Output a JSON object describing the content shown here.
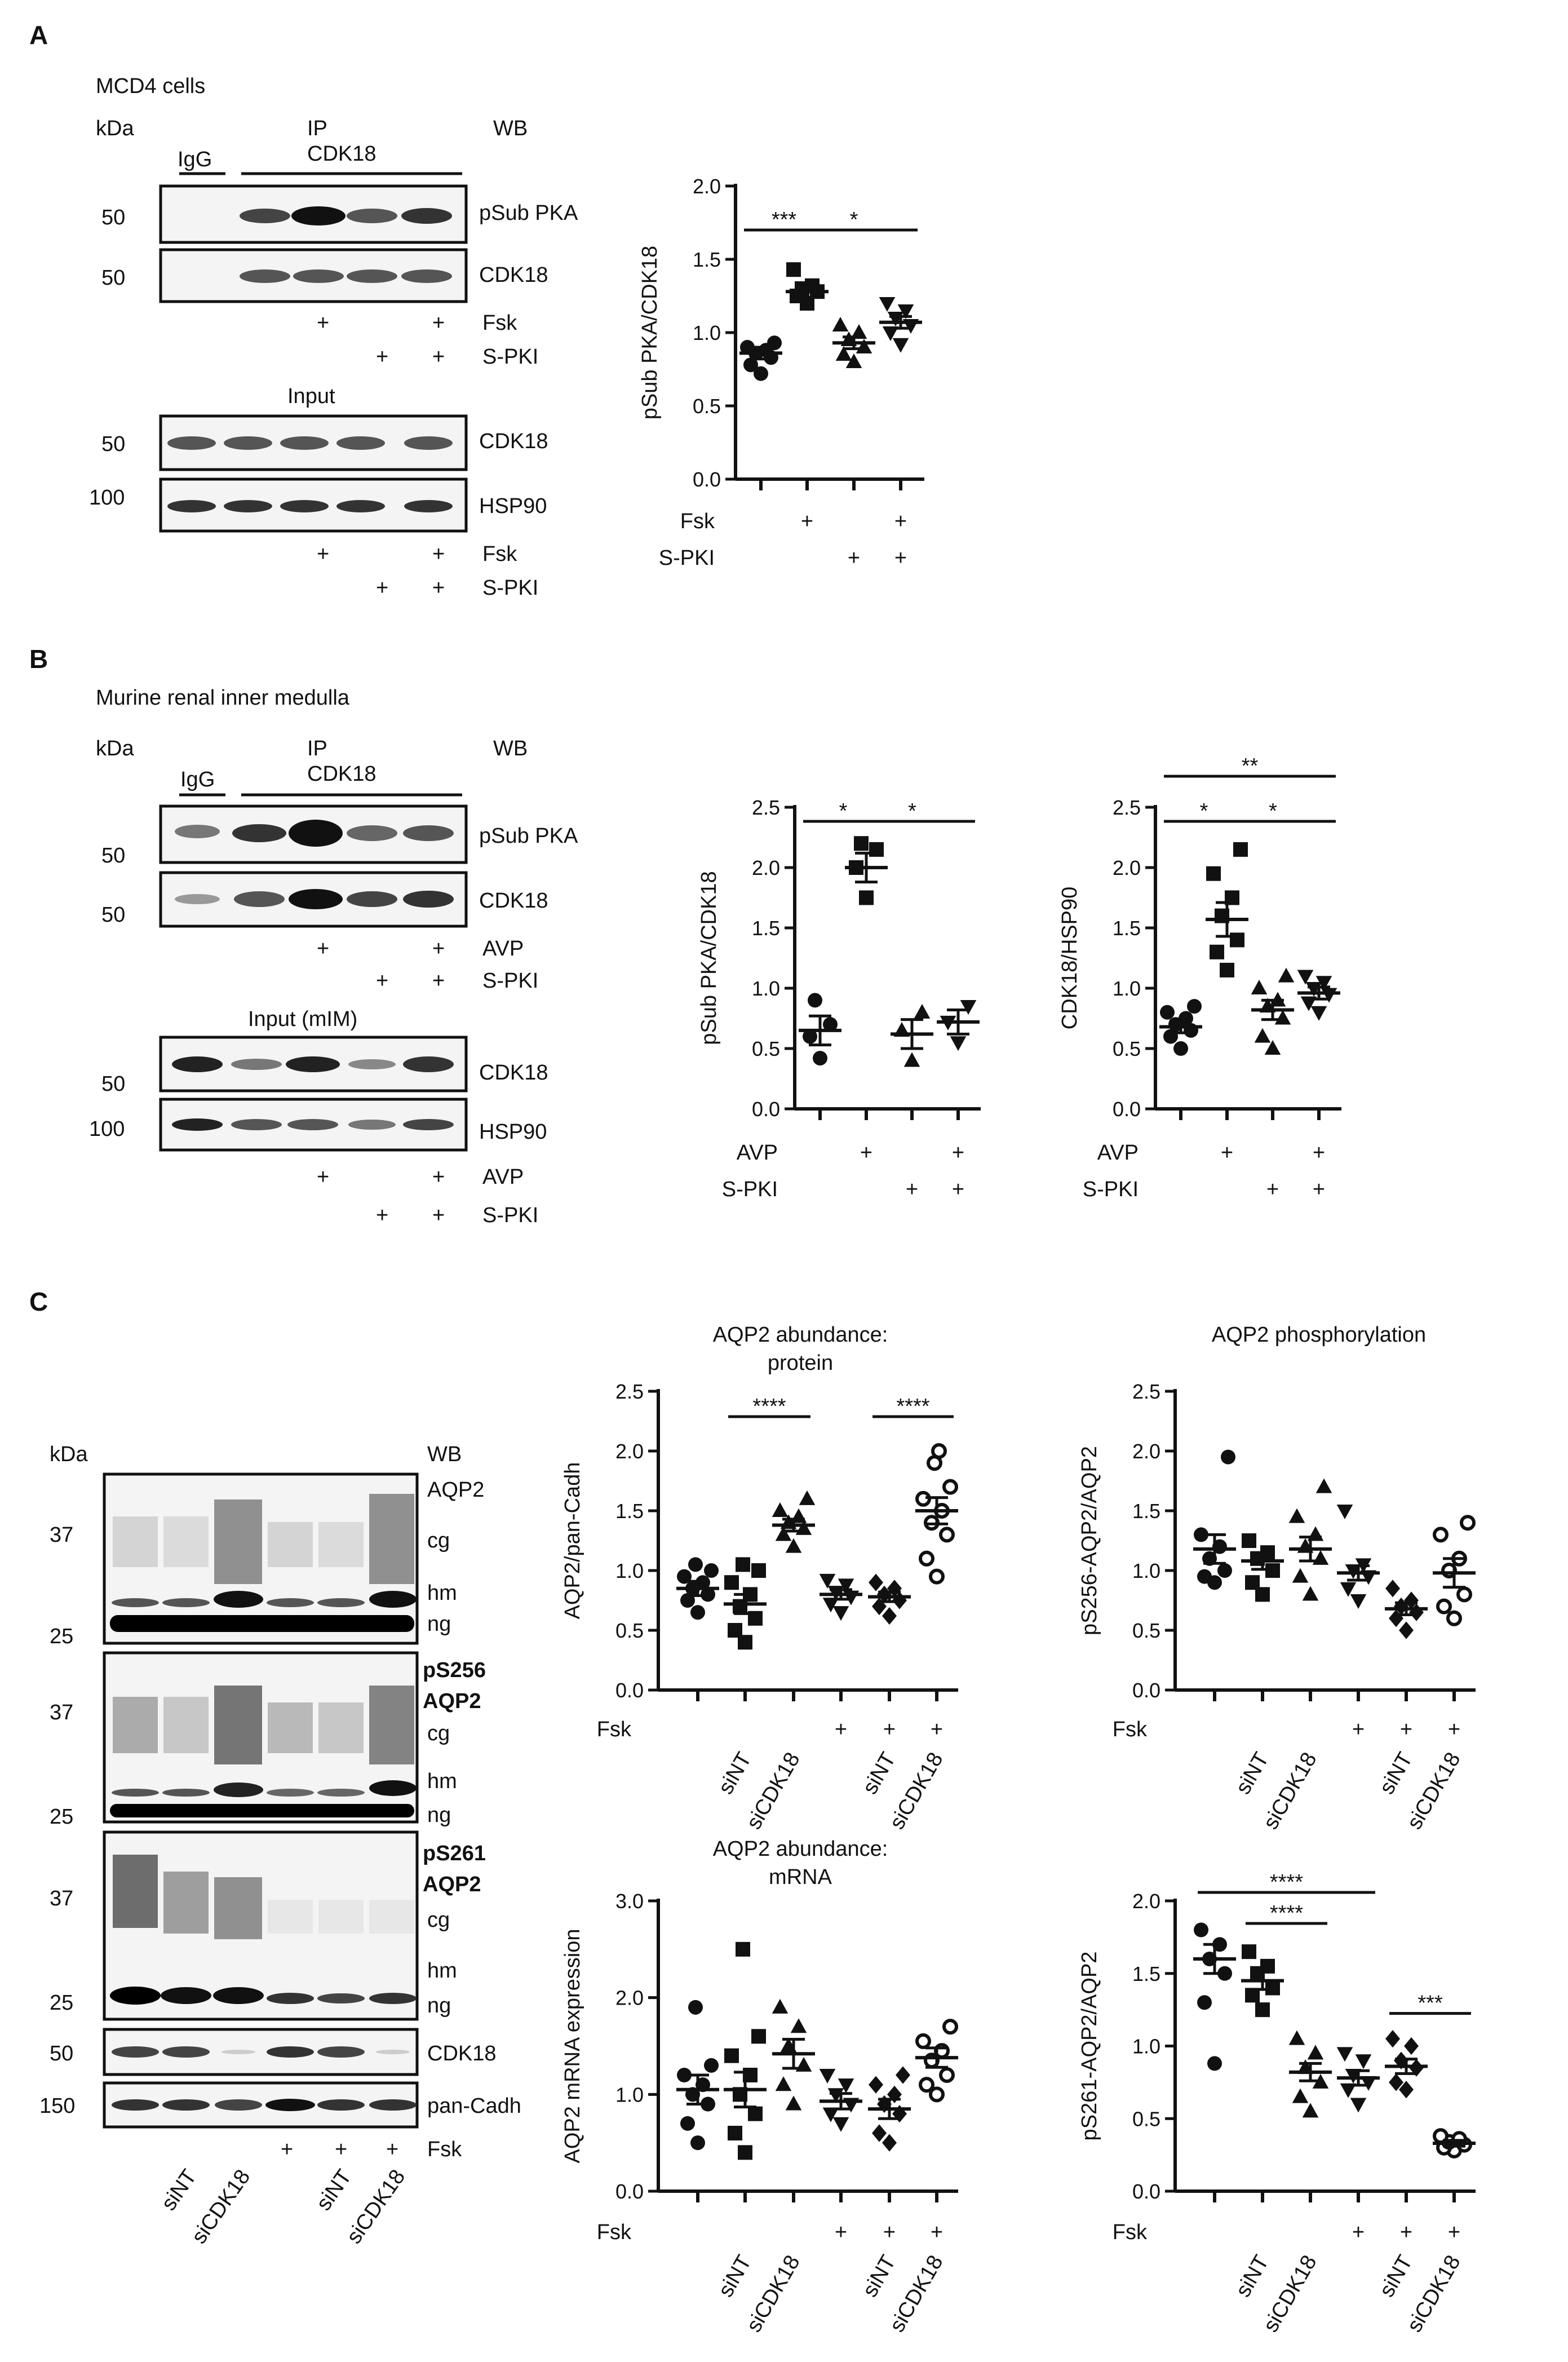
{
  "panels": {
    "A": {
      "letter": "A",
      "cells": "MCD4 cells",
      "kda": "kDa",
      "ip": "IP",
      "ip_target": "CDK18",
      "igg": "IgG",
      "wb": "WB",
      "input": "Input",
      "blots_ip": [
        {
          "mw": "50",
          "label": "pSub PKA"
        },
        {
          "mw": "50",
          "label": "CDK18"
        }
      ],
      "blots_input": [
        {
          "mw": "50",
          "label": "CDK18"
        },
        {
          "mw": "100",
          "label": "HSP90"
        }
      ],
      "treat1": "Fsk",
      "treat2": "S-PKI",
      "plus": "+"
    },
    "B": {
      "letter": "B",
      "cells": "Murine renal inner medulla",
      "kda": "kDa",
      "ip": "IP",
      "ip_target": "CDK18",
      "igg": "IgG",
      "wb": "WB",
      "input": "Input (mIM)",
      "blots_ip": [
        {
          "mw": "50",
          "label": "pSub PKA"
        },
        {
          "mw": "50",
          "label": "CDK18"
        }
      ],
      "blots_input": [
        {
          "mw": "50",
          "label": "CDK18"
        },
        {
          "mw": "100",
          "label": "HSP90"
        }
      ],
      "treat1": "AVP",
      "treat2": "S-PKI",
      "plus": "+"
    },
    "C": {
      "letter": "C",
      "kda": "kDa",
      "wb": "WB",
      "blot1": {
        "mw": [
          "37",
          "25"
        ],
        "labels": [
          "AQP2",
          "cg",
          "hm",
          "ng"
        ]
      },
      "blot2": {
        "mw": [
          "37",
          "25"
        ],
        "labels": [
          "pS256",
          "AQP2",
          "cg",
          "hm",
          "ng"
        ]
      },
      "blot3": {
        "mw": [
          "37",
          "25"
        ],
        "labels": [
          "pS261",
          "AQP2",
          "cg",
          "hm",
          "ng"
        ]
      },
      "blot4": {
        "mw": "50",
        "label": "CDK18"
      },
      "blot5": {
        "mw": "150",
        "label": "pan-Cadh"
      },
      "treat": "Fsk",
      "plus": "+",
      "si": [
        "siNT",
        "siCDK18",
        "siNT",
        "siCDK18"
      ]
    }
  },
  "chart_data": [
    {
      "id": "A_plot",
      "type": "scatter",
      "ylabel": "pSub PKA/CDK18",
      "ylim": [
        0,
        2.0
      ],
      "yticks": [
        "0.0",
        "0.5",
        "1.0",
        "1.5",
        "2.0"
      ],
      "row_labels": [
        "Fsk",
        "S-PKI"
      ],
      "conditions": [
        [
          "",
          ""
        ],
        [
          "+",
          ""
        ],
        [
          "",
          "+"
        ],
        [
          "+",
          "+"
        ]
      ],
      "groups": [
        {
          "marker": "circle",
          "mean": 0.86,
          "sem": 0.04,
          "values": [
            0.72,
            0.78,
            0.83,
            0.86,
            0.88,
            0.9,
            0.93
          ]
        },
        {
          "marker": "square",
          "mean": 1.28,
          "sem": 0.04,
          "values": [
            1.2,
            1.25,
            1.28,
            1.3,
            1.32,
            1.43
          ]
        },
        {
          "marker": "triangle",
          "mean": 0.93,
          "sem": 0.04,
          "values": [
            0.8,
            0.85,
            0.9,
            0.95,
            1.0,
            1.05
          ]
        },
        {
          "marker": "triangle-down",
          "mean": 1.07,
          "sem": 0.04,
          "values": [
            0.92,
            1.0,
            1.05,
            1.1,
            1.15,
            1.2
          ]
        }
      ],
      "significance": [
        {
          "from": 0,
          "to": 1,
          "label": "***"
        },
        {
          "from": 1,
          "to": 3,
          "label": "*"
        }
      ]
    },
    {
      "id": "B_plot1",
      "type": "scatter",
      "ylabel": "pSub PKA/CDK18",
      "ylim": [
        0,
        2.5
      ],
      "yticks": [
        "0.0",
        "0.5",
        "1.0",
        "1.5",
        "2.0",
        "2.5"
      ],
      "row_labels": [
        "AVP",
        "S-PKI"
      ],
      "conditions": [
        [
          "",
          ""
        ],
        [
          "+",
          ""
        ],
        [
          "",
          "+"
        ],
        [
          "+",
          "+"
        ]
      ],
      "groups": [
        {
          "marker": "circle",
          "mean": 0.65,
          "sem": 0.12,
          "values": [
            0.42,
            0.6,
            0.7,
            0.9
          ]
        },
        {
          "marker": "square",
          "mean": 2.0,
          "sem": 0.12,
          "values": [
            1.75,
            2.0,
            2.15,
            2.2
          ]
        },
        {
          "marker": "triangle",
          "mean": 0.62,
          "sem": 0.12,
          "values": [
            0.4,
            0.65,
            0.8
          ]
        },
        {
          "marker": "triangle-down",
          "mean": 0.72,
          "sem": 0.1,
          "values": [
            0.55,
            0.72,
            0.85
          ]
        }
      ],
      "significance": [
        {
          "from": 0,
          "to": 1,
          "label": "*"
        },
        {
          "from": 1,
          "to": 3,
          "label": "*"
        }
      ]
    },
    {
      "id": "B_plot2",
      "type": "scatter",
      "ylabel": "CDK18/HSP90",
      "ylim": [
        0,
        2.5
      ],
      "yticks": [
        "0.0",
        "0.5",
        "1.0",
        "1.5",
        "2.0",
        "2.5"
      ],
      "row_labels": [
        "AVP",
        "S-PKI"
      ],
      "conditions": [
        [
          "",
          ""
        ],
        [
          "+",
          ""
        ],
        [
          "",
          "+"
        ],
        [
          "+",
          "+"
        ]
      ],
      "groups": [
        {
          "marker": "circle",
          "mean": 0.68,
          "sem": 0.05,
          "values": [
            0.5,
            0.6,
            0.65,
            0.7,
            0.75,
            0.8,
            0.85
          ]
        },
        {
          "marker": "square",
          "mean": 1.57,
          "sem": 0.14,
          "values": [
            1.15,
            1.3,
            1.4,
            1.6,
            1.75,
            1.95,
            2.15
          ]
        },
        {
          "marker": "triangle",
          "mean": 0.82,
          "sem": 0.08,
          "values": [
            0.5,
            0.6,
            0.75,
            0.85,
            0.9,
            1.0,
            1.1
          ]
        },
        {
          "marker": "triangle-down",
          "mean": 0.96,
          "sem": 0.05,
          "values": [
            0.8,
            0.88,
            0.95,
            1.0,
            1.05,
            1.1
          ]
        }
      ],
      "significance": [
        {
          "from": 0,
          "to": 1,
          "label": "*"
        },
        {
          "from": 1,
          "to": 3,
          "label": "*"
        },
        {
          "from": 0,
          "to": 3,
          "label": "**"
        }
      ]
    },
    {
      "id": "C_plot1",
      "type": "scatter",
      "title": "AQP2 abundance:",
      "subtitle": "protein",
      "ylabel": "AQP2/pan-Cadh",
      "ylim": [
        0,
        2.5
      ],
      "yticks": [
        "0.0",
        "0.5",
        "1.0",
        "1.5",
        "2.0",
        "2.5"
      ],
      "row_labels": [
        "Fsk"
      ],
      "conditions": [
        [
          ""
        ],
        [
          ""
        ],
        [
          ""
        ],
        [
          "+"
        ],
        [
          "+"
        ],
        [
          "+"
        ]
      ],
      "xlabels": [
        "",
        "siNT",
        "siCDK18",
        "",
        "siNT",
        "siCDK18"
      ],
      "groups": [
        {
          "marker": "circle",
          "mean": 0.85,
          "sem": 0.06,
          "values": [
            0.65,
            0.75,
            0.8,
            0.85,
            0.9,
            0.95,
            1.0,
            1.05
          ]
        },
        {
          "marker": "square",
          "mean": 0.72,
          "sem": 0.08,
          "values": [
            0.4,
            0.5,
            0.6,
            0.7,
            0.8,
            0.9,
            1.0,
            1.05
          ]
        },
        {
          "marker": "triangle",
          "mean": 1.38,
          "sem": 0.05,
          "values": [
            1.2,
            1.3,
            1.35,
            1.4,
            1.45,
            1.5,
            1.6
          ]
        },
        {
          "marker": "triangle-down",
          "mean": 0.8,
          "sem": 0.04,
          "values": [
            0.65,
            0.72,
            0.78,
            0.82,
            0.88,
            0.92
          ]
        },
        {
          "marker": "diamond",
          "mean": 0.78,
          "sem": 0.04,
          "values": [
            0.62,
            0.7,
            0.75,
            0.8,
            0.85,
            0.9
          ]
        },
        {
          "marker": "circle-open",
          "mean": 1.5,
          "sem": 0.11,
          "values": [
            0.95,
            1.1,
            1.3,
            1.4,
            1.5,
            1.6,
            1.7,
            1.9,
            2.0
          ]
        }
      ],
      "significance": [
        {
          "from": 1,
          "to": 2,
          "label": "****"
        },
        {
          "from": 4,
          "to": 5,
          "label": "****"
        }
      ]
    },
    {
      "id": "C_plot2",
      "type": "scatter",
      "title": "AQP2 phosphorylation",
      "ylabel": "pS256-AQP2/AQP2",
      "ylim": [
        0,
        2.5
      ],
      "yticks": [
        "0.0",
        "0.5",
        "1.0",
        "1.5",
        "2.0",
        "2.5"
      ],
      "row_labels": [
        "Fsk"
      ],
      "conditions": [
        [
          ""
        ],
        [
          ""
        ],
        [
          ""
        ],
        [
          "+"
        ],
        [
          "+"
        ],
        [
          "+"
        ]
      ],
      "xlabels": [
        "",
        "siNT",
        "siCDK18",
        "",
        "siNT",
        "siCDK18"
      ],
      "groups": [
        {
          "marker": "circle",
          "mean": 1.18,
          "sem": 0.12,
          "values": [
            0.9,
            0.95,
            1.0,
            1.1,
            1.2,
            1.3,
            1.95
          ]
        },
        {
          "marker": "square",
          "mean": 1.08,
          "sem": 0.07,
          "values": [
            0.8,
            0.9,
            1.0,
            1.1,
            1.15,
            1.25
          ]
        },
        {
          "marker": "triangle",
          "mean": 1.18,
          "sem": 0.1,
          "values": [
            0.8,
            0.95,
            1.1,
            1.2,
            1.3,
            1.45,
            1.7
          ]
        },
        {
          "marker": "triangle-down",
          "mean": 0.98,
          "sem": 0.06,
          "values": [
            0.75,
            0.85,
            0.95,
            1.0,
            1.05,
            1.5
          ]
        },
        {
          "marker": "diamond",
          "mean": 0.68,
          "sem": 0.05,
          "values": [
            0.5,
            0.6,
            0.65,
            0.7,
            0.75,
            0.85
          ]
        },
        {
          "marker": "circle-open",
          "mean": 0.98,
          "sem": 0.12,
          "values": [
            0.6,
            0.7,
            0.8,
            1.0,
            1.1,
            1.3,
            1.4
          ]
        }
      ],
      "significance": []
    },
    {
      "id": "C_plot3",
      "type": "scatter",
      "title": "AQP2 abundance:",
      "subtitle": "mRNA",
      "ylabel": "AQP2 mRNA expression",
      "ylim": [
        0,
        3.0
      ],
      "yticks": [
        "0.0",
        "1.0",
        "2.0",
        "3.0"
      ],
      "row_labels": [
        "Fsk"
      ],
      "conditions": [
        [
          ""
        ],
        [
          ""
        ],
        [
          ""
        ],
        [
          "+"
        ],
        [
          "+"
        ],
        [
          "+"
        ]
      ],
      "xlabels": [
        "",
        "siNT",
        "siCDK18",
        "",
        "siNT",
        "siCDK18"
      ],
      "groups": [
        {
          "marker": "circle",
          "mean": 1.05,
          "sem": 0.15,
          "values": [
            0.5,
            0.7,
            0.9,
            1.0,
            1.1,
            1.2,
            1.3,
            1.9
          ]
        },
        {
          "marker": "square",
          "mean": 1.05,
          "sem": 0.18,
          "values": [
            0.4,
            0.6,
            0.8,
            1.0,
            1.2,
            1.4,
            1.6,
            2.5
          ]
        },
        {
          "marker": "triangle",
          "mean": 1.42,
          "sem": 0.15,
          "values": [
            0.9,
            1.1,
            1.3,
            1.5,
            1.7,
            1.9
          ]
        },
        {
          "marker": "triangle-down",
          "mean": 0.93,
          "sem": 0.08,
          "values": [
            0.7,
            0.8,
            0.9,
            1.0,
            1.1,
            1.2
          ]
        },
        {
          "marker": "diamond",
          "mean": 0.85,
          "sem": 0.1,
          "values": [
            0.5,
            0.6,
            0.8,
            0.9,
            1.0,
            1.1,
            1.2
          ]
        },
        {
          "marker": "circle-open",
          "mean": 1.38,
          "sem": 0.1,
          "values": [
            1.0,
            1.1,
            1.2,
            1.35,
            1.45,
            1.55,
            1.7
          ]
        }
      ],
      "significance": []
    },
    {
      "id": "C_plot4",
      "type": "scatter",
      "ylabel": "pS261-AQP2/AQP2",
      "ylim": [
        0,
        2.0
      ],
      "yticks": [
        "0.0",
        "0.5",
        "1.0",
        "1.5",
        "2.0"
      ],
      "row_labels": [
        "Fsk"
      ],
      "conditions": [
        [
          ""
        ],
        [
          ""
        ],
        [
          ""
        ],
        [
          "+"
        ],
        [
          "+"
        ],
        [
          "+"
        ]
      ],
      "xlabels": [
        "",
        "siNT",
        "siCDK18",
        "",
        "siNT",
        "siCDK18"
      ],
      "groups": [
        {
          "marker": "circle",
          "mean": 1.6,
          "sem": 0.1,
          "values": [
            0.88,
            1.3,
            1.5,
            1.6,
            1.7,
            1.8
          ]
        },
        {
          "marker": "square",
          "mean": 1.45,
          "sem": 0.06,
          "values": [
            1.25,
            1.35,
            1.4,
            1.5,
            1.55,
            1.65
          ]
        },
        {
          "marker": "triangle",
          "mean": 0.82,
          "sem": 0.06,
          "values": [
            0.55,
            0.65,
            0.75,
            0.85,
            0.95,
            1.05
          ]
        },
        {
          "marker": "triangle-down",
          "mean": 0.78,
          "sem": 0.05,
          "values": [
            0.6,
            0.7,
            0.75,
            0.8,
            0.9,
            0.95
          ]
        },
        {
          "marker": "diamond",
          "mean": 0.86,
          "sem": 0.05,
          "values": [
            0.7,
            0.75,
            0.85,
            0.9,
            1.0,
            1.05
          ]
        },
        {
          "marker": "circle-open",
          "mean": 0.33,
          "sem": 0.02,
          "values": [
            0.28,
            0.3,
            0.32,
            0.34,
            0.36,
            0.38
          ]
        }
      ],
      "significance": [
        {
          "from": 0,
          "to": 3,
          "label": "****"
        },
        {
          "from": 1,
          "to": 2,
          "label": "****"
        },
        {
          "from": 4,
          "to": 5,
          "label": "***"
        }
      ]
    }
  ]
}
